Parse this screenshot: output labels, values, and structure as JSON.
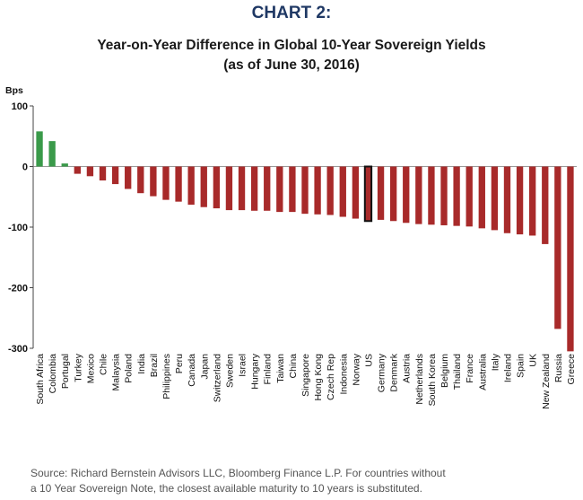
{
  "header": {
    "chart_number": "CHART 2:",
    "title_line1": "Year-on-Year Difference in Global 10-Year Sovereign Yields",
    "title_line2": "(as of June 30, 2016)"
  },
  "footer": {
    "source_line1": "Source: Richard Bernstein Advisors LLC, Bloomberg Finance L.P. For countries without",
    "source_line2": "a 10 Year Sovereign Note, the closest available maturity to 10 years is substituted."
  },
  "colors": {
    "positive": "#3a9a4a",
    "negative": "#a82a2a",
    "highlight_outline": "#111111"
  },
  "chart_data": {
    "type": "bar",
    "ylabel": "Bps",
    "ylim": [
      -300,
      100
    ],
    "yticks": [
      100,
      0,
      -100,
      -200,
      -300
    ],
    "highlight": "US",
    "categories": [
      "South Africa",
      "Colombia",
      "Portugal",
      "Turkey",
      "Mexico",
      "Chile",
      "Malaysia",
      "Poland",
      "India",
      "Brazil",
      "Philippines",
      "Peru",
      "Canada",
      "Japan",
      "Switzerland",
      "Sweden",
      "Israel",
      "Hungary",
      "Finland",
      "Taiwan",
      "China",
      "Singapore",
      "Hong Kong",
      "Czech Rep",
      "Indonesia",
      "Norway",
      "US",
      "Germany",
      "Denmark",
      "Austria",
      "Netherlands",
      "South Korea",
      "Belgium",
      "Thailand",
      "France",
      "Australia",
      "Italy",
      "Ireland",
      "Spain",
      "UK",
      "New Zealand",
      "Russia",
      "Greece"
    ],
    "values": [
      58,
      42,
      5,
      -12,
      -16,
      -23,
      -29,
      -37,
      -44,
      -49,
      -55,
      -58,
      -63,
      -67,
      -69,
      -72,
      -72,
      -73,
      -73,
      -75,
      -75,
      -78,
      -79,
      -80,
      -83,
      -86,
      -90,
      -88,
      -90,
      -93,
      -95,
      -96,
      -97,
      -98,
      -99,
      -102,
      -105,
      -110,
      -112,
      -114,
      -128,
      -268,
      -305
    ]
  }
}
